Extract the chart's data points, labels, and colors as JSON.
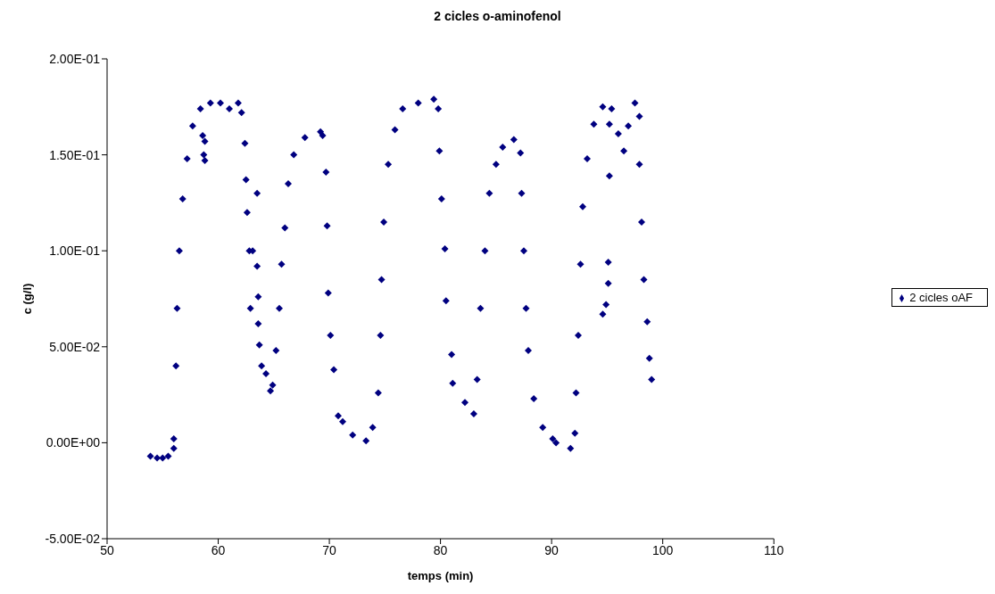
{
  "chart_data": {
    "type": "scatter",
    "title": "2 cicles o-aminofenol",
    "xlabel": "temps (min)",
    "ylabel": "c (g/l)",
    "xlim": [
      50,
      110
    ],
    "xticks": [
      50,
      60,
      70,
      80,
      90,
      100,
      110
    ],
    "ylim": [
      -0.05,
      0.2
    ],
    "yticks": [
      {
        "value": -0.05,
        "label": "-5.00E-02"
      },
      {
        "value": 0,
        "label": "0.00E+00"
      },
      {
        "value": 0.05,
        "label": "5.00E-02"
      },
      {
        "value": 0.1,
        "label": "1.00E-01"
      },
      {
        "value": 0.15,
        "label": "1.50E-01"
      },
      {
        "value": 0.2,
        "label": "2.00E-01"
      }
    ],
    "grid": false,
    "legend": "right",
    "marker": "diamond",
    "series": [
      {
        "name": "2 cicles oAF",
        "color": "#000080",
        "x": [
          53.9,
          54.5,
          55.0,
          55.5,
          56.0,
          56.0,
          56.2,
          56.3,
          56.5,
          56.8,
          57.2,
          57.7,
          58.4,
          59.3,
          60.2,
          61.0,
          61.8,
          62.1,
          62.4,
          62.5,
          62.6,
          62.8,
          62.9,
          58.6,
          58.7,
          58.8,
          58.8,
          63.5,
          63.1,
          63.5,
          63.6,
          63.6,
          63.7,
          63.9,
          64.3,
          64.7,
          64.9,
          65.2,
          65.5,
          65.7,
          66.0,
          66.3,
          66.8,
          67.8,
          69.2,
          69.4,
          69.7,
          69.8,
          69.9,
          70.1,
          70.4,
          70.8,
          71.2,
          72.1,
          73.3,
          73.9,
          74.4,
          74.6,
          74.7,
          74.9,
          75.3,
          75.9,
          76.6,
          78.0,
          79.4,
          79.8,
          79.9,
          80.1,
          80.4,
          80.5,
          81.0,
          81.1,
          82.2,
          83.0,
          83.3,
          83.6,
          84.0,
          84.4,
          85.0,
          85.6,
          86.6,
          87.2,
          87.3,
          87.5,
          87.7,
          87.9,
          88.4,
          89.2,
          90.1,
          90.4,
          91.7,
          92.1,
          92.2,
          92.4,
          92.6,
          92.8,
          93.2,
          93.8,
          94.6,
          95.4,
          96.0,
          96.5,
          96.9,
          97.5,
          97.9,
          97.9,
          98.1,
          98.3,
          98.6,
          98.8,
          99.0,
          95.2,
          95.2,
          95.1,
          95.1,
          94.6,
          94.9
        ],
        "values": [
          -0.007,
          -0.008,
          -0.008,
          -0.007,
          -0.003,
          0.002,
          0.04,
          0.07,
          0.1,
          0.127,
          0.148,
          0.165,
          0.174,
          0.177,
          0.177,
          0.174,
          0.177,
          0.172,
          0.156,
          0.137,
          0.12,
          0.1,
          0.07,
          0.16,
          0.15,
          0.147,
          0.157,
          0.13,
          0.1,
          0.092,
          0.076,
          0.062,
          0.051,
          0.04,
          0.036,
          0.027,
          0.03,
          0.048,
          0.07,
          0.093,
          0.112,
          0.135,
          0.15,
          0.159,
          0.162,
          0.16,
          0.141,
          0.113,
          0.078,
          0.056,
          0.038,
          0.014,
          0.011,
          0.004,
          0.001,
          0.008,
          0.026,
          0.056,
          0.085,
          0.115,
          0.145,
          0.163,
          0.174,
          0.177,
          0.179,
          0.174,
          0.152,
          0.127,
          0.101,
          0.074,
          0.046,
          0.031,
          0.021,
          0.015,
          0.033,
          0.07,
          0.1,
          0.13,
          0.145,
          0.154,
          0.158,
          0.151,
          0.13,
          0.1,
          0.07,
          0.048,
          0.023,
          0.008,
          0.002,
          0,
          -0.003,
          0.005,
          0.026,
          0.056,
          0.093,
          0.123,
          0.148,
          0.166,
          0.175,
          0.174,
          0.161,
          0.152,
          0.165,
          0.177,
          0.17,
          0.145,
          0.115,
          0.085,
          0.063,
          0.044,
          0.033,
          0.166,
          0.139,
          0.094,
          0.083,
          0.067,
          0.072
        ]
      }
    ]
  }
}
